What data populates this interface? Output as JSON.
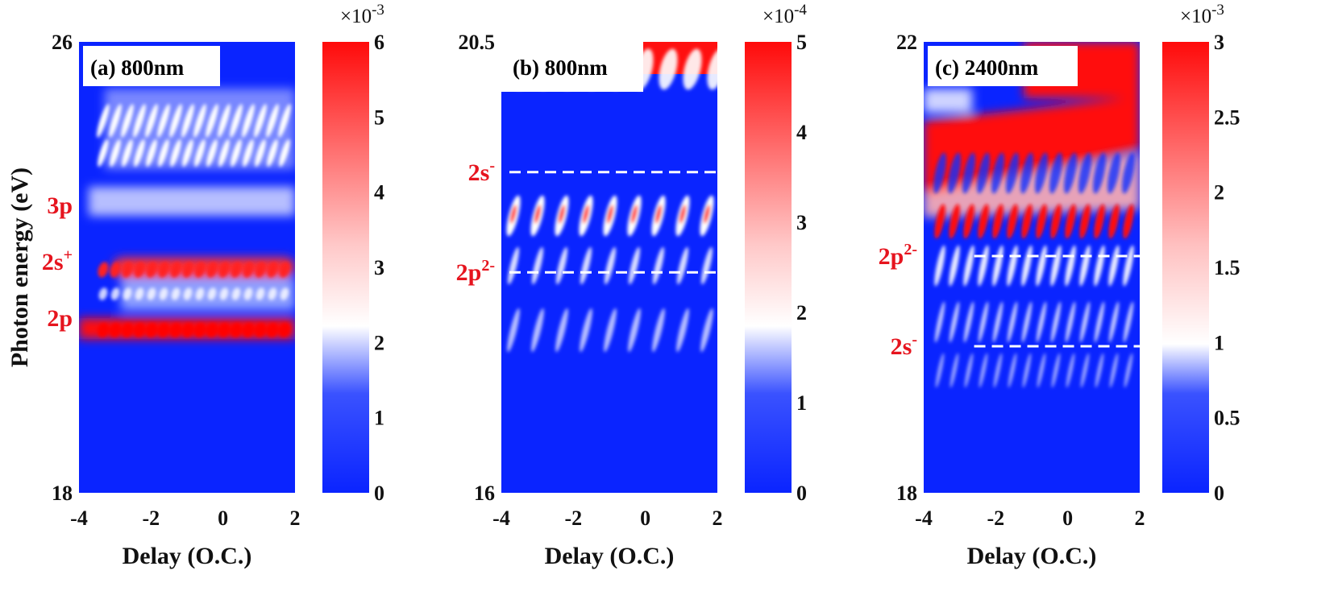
{
  "chart_data": [
    {
      "type": "heatmap",
      "panel_title": "(a) 800nm",
      "xlabel": "Delay (O.C.)",
      "ylabel": "Photon energy (eV)",
      "xlim": [
        -4,
        2
      ],
      "ylim": [
        18,
        26
      ],
      "x_ticks": [
        "-4",
        "-2",
        "0",
        "2"
      ],
      "y_ticks": [
        "18",
        "26"
      ],
      "colorbar": {
        "range": [
          0,
          6
        ],
        "ticks": [
          "0",
          "1",
          "2",
          "3",
          "4",
          "5",
          "6"
        ],
        "scale_factor": "×10",
        "exponent": "-3"
      },
      "annotations": [
        {
          "text": "3p",
          "sup": "",
          "y": 23.1
        },
        {
          "text": "2s",
          "sup": "+",
          "y": 22.1
        },
        {
          "text": "2p",
          "sup": "",
          "y": 21.1
        }
      ],
      "colors": {
        "low": "#0a24ff",
        "mid": "#ffffff",
        "high": "#ff0a0a"
      }
    },
    {
      "type": "heatmap",
      "panel_title": "(b) 800nm",
      "xlabel": "Delay (O.C.)",
      "ylabel": "",
      "xlim": [
        -4,
        2
      ],
      "ylim": [
        16,
        20.5
      ],
      "x_ticks": [
        "-4",
        "-2",
        "0",
        "2"
      ],
      "y_ticks": [
        "16",
        "20.5"
      ],
      "colorbar": {
        "range": [
          0,
          5
        ],
        "ticks": [
          "0",
          "1",
          "2",
          "3",
          "4",
          "5"
        ],
        "scale_factor": "×10",
        "exponent": "-4"
      },
      "annotations": [
        {
          "text": "2s",
          "sup": "-",
          "y": 19.2,
          "dashed_line": true
        },
        {
          "text": "2p",
          "sup": "2-",
          "y": 18.2,
          "dashed_line": true
        }
      ],
      "colors": {
        "low": "#0a24ff",
        "mid": "#ffffff",
        "high": "#ff0a0a"
      }
    },
    {
      "type": "heatmap",
      "panel_title": "(c) 2400nm",
      "xlabel": "Delay (O.C.)",
      "ylabel": "",
      "xlim": [
        -4,
        2
      ],
      "ylim": [
        18,
        22
      ],
      "x_ticks": [
        "-4",
        "-2",
        "0",
        "2"
      ],
      "y_ticks": [
        "18",
        "22"
      ],
      "colorbar": {
        "range": [
          0,
          3
        ],
        "ticks": [
          "0",
          "0.5",
          "1",
          "1.5",
          "2",
          "2.5",
          "3"
        ],
        "scale_factor": "×10",
        "exponent": "-3"
      },
      "annotations": [
        {
          "text": "2p",
          "sup": "2-",
          "y": 20.1,
          "dashed_line": true
        },
        {
          "text": "2s",
          "sup": "-",
          "y": 19.3,
          "dashed_line": true
        }
      ],
      "colors": {
        "low": "#0a24ff",
        "mid": "#ffffff",
        "high": "#ff0a0a"
      }
    }
  ]
}
